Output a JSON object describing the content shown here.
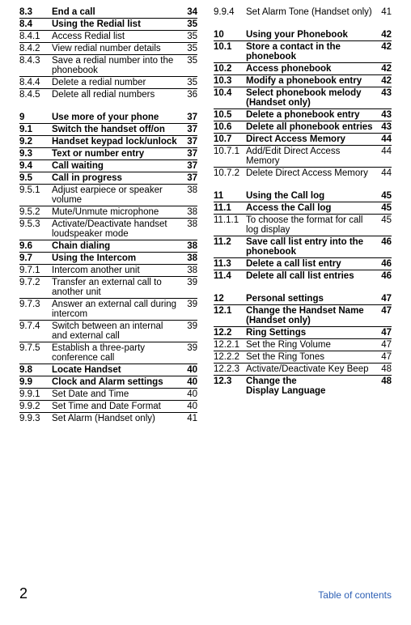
{
  "footer": {
    "page": "2",
    "label": "Table of contents"
  },
  "left": [
    {
      "s": "8.3",
      "t": "End a call",
      "p": "34",
      "b": true,
      "nb": true
    },
    {
      "s": "8.4",
      "t": "Using the Redial list",
      "p": "35",
      "b": true
    },
    {
      "s": "8.4.1",
      "t": "Access Redial list",
      "p": "35"
    },
    {
      "s": "8.4.2",
      "t": "View redial number details",
      "p": "35"
    },
    {
      "s": "8.4.3",
      "t": "Save a redial number into the phonebook",
      "p": "35"
    },
    {
      "s": "8.4.4",
      "t": "Delete a redial number",
      "p": "35"
    },
    {
      "s": "8.4.5",
      "t": "Delete all redial numbers",
      "p": "36"
    },
    {
      "spacer": true
    },
    {
      "s": "9",
      "t": "Use more of your phone",
      "p": "37",
      "b": true,
      "nb": true
    },
    {
      "s": "9.1",
      "t": "Switch the handset off/on",
      "p": "37",
      "b": true
    },
    {
      "s": "9.2",
      "t": "Handset keypad lock/unlock",
      "p": "37",
      "b": true
    },
    {
      "s": "9.3",
      "t": "Text or number entry",
      "p": "37",
      "b": true
    },
    {
      "s": "9.4",
      "t": "Call waiting",
      "p": "37",
      "b": true
    },
    {
      "s": "9.5",
      "t": "Call in progress",
      "p": "37",
      "b": true
    },
    {
      "s": "9.5.1",
      "t": "Adjust earpiece or speaker volume",
      "p": "38"
    },
    {
      "s": "9.5.2",
      "t": "Mute/Unmute microphone",
      "p": "38"
    },
    {
      "s": "9.5.3",
      "t": "Activate/Deactivate handset loudspeaker mode",
      "p": "38"
    },
    {
      "s": "9.6",
      "t": "Chain dialing",
      "p": "38",
      "b": true
    },
    {
      "s": "9.7",
      "t": "Using the Intercom",
      "p": "38",
      "b": true
    },
    {
      "s": "9.7.1",
      "t": "Intercom another unit",
      "p": "38"
    },
    {
      "s": "9.7.2",
      "t": "Transfer an external call to another unit",
      "p": "39"
    },
    {
      "s": "9.7.3",
      "t": "Answer an external call during intercom",
      "p": "39"
    },
    {
      "s": "9.7.4",
      "t": "Switch between an internal and external call",
      "p": "39"
    },
    {
      "s": "9.7.5",
      "t": "Establish a three-party conference call",
      "p": "39"
    },
    {
      "s": "9.8",
      "t": "Locate Handset",
      "p": "40",
      "b": true
    },
    {
      "s": "9.9",
      "t": "Clock and Alarm settings",
      "p": "40",
      "b": true
    },
    {
      "s": "9.9.1",
      "t": "Set Date and Time",
      "p": "40"
    },
    {
      "s": "9.9.2",
      "t": "Set Time and Date Format",
      "p": "40"
    },
    {
      "s": "9.9.3",
      "t": "Set Alarm (Handset only)",
      "p": "41"
    }
  ],
  "right": [
    {
      "s": "9.9.4",
      "t": "Set Alarm Tone (Handset only)",
      "p": "41",
      "nb": true
    },
    {
      "spacer": true
    },
    {
      "s": "10",
      "t": "Using your Phonebook",
      "p": "42",
      "b": true,
      "nb": true
    },
    {
      "s": "10.1",
      "t": "Store a contact in the phonebook",
      "p": "42",
      "b": true
    },
    {
      "s": "10.2",
      "t": "Access phonebook",
      "p": "42",
      "b": true
    },
    {
      "s": "10.3",
      "t": "Modify a phonebook entry",
      "p": "42",
      "b": true
    },
    {
      "s": "10.4",
      "t": "Select phonebook melody (Handset only)",
      "p": "43",
      "b": true
    },
    {
      "s": "10.5",
      "t": "Delete a phonebook entry",
      "p": "43",
      "b": true
    },
    {
      "s": "10.6",
      "t": "Delete all phonebook entries",
      "p": "43",
      "b": true
    },
    {
      "s": "10.7",
      "t": "Direct Access Memory",
      "p": "44",
      "b": true
    },
    {
      "s": "10.7.1",
      "t": "Add/Edit Direct Access Memory",
      "p": "44"
    },
    {
      "s": "10.7.2",
      "t": "Delete Direct Access Memory",
      "p": "44"
    },
    {
      "spacer": true
    },
    {
      "s": "11",
      "t": "Using the Call log",
      "p": "45",
      "b": true,
      "nb": true
    },
    {
      "s": "11.1",
      "t": "Access the Call log",
      "p": "45",
      "b": true
    },
    {
      "s": "11.1.1",
      "t": "To choose the format for call log display",
      "p": "45"
    },
    {
      "s": "11.2",
      "t": "Save call list entry into the phonebook",
      "p": "46",
      "b": true
    },
    {
      "s": "11.3",
      "t": "Delete a call list entry",
      "p": "46",
      "b": true
    },
    {
      "s": "11.4",
      "t": "Delete all call list entries",
      "p": "46",
      "b": true
    },
    {
      "spacer": true
    },
    {
      "s": "12",
      "t": "Personal settings",
      "p": "47",
      "b": true,
      "nb": true
    },
    {
      "s": "12.1",
      "t": "Change the Handset Name (Handset only)",
      "p": "47",
      "b": true
    },
    {
      "s": "12.2",
      "t": "Ring Settings",
      "p": "47",
      "b": true
    },
    {
      "s": "12.2.1",
      "t": "Set the Ring Volume",
      "p": "47"
    },
    {
      "s": "12.2.2",
      "t": "Set the Ring Tones",
      "p": "47"
    },
    {
      "s": "12.2.3",
      "t": "Activate/Deactivate Key Beep",
      "p": "48"
    },
    {
      "s": "12.3",
      "t": "Change the Display Language",
      "p": "48",
      "b": true
    }
  ]
}
